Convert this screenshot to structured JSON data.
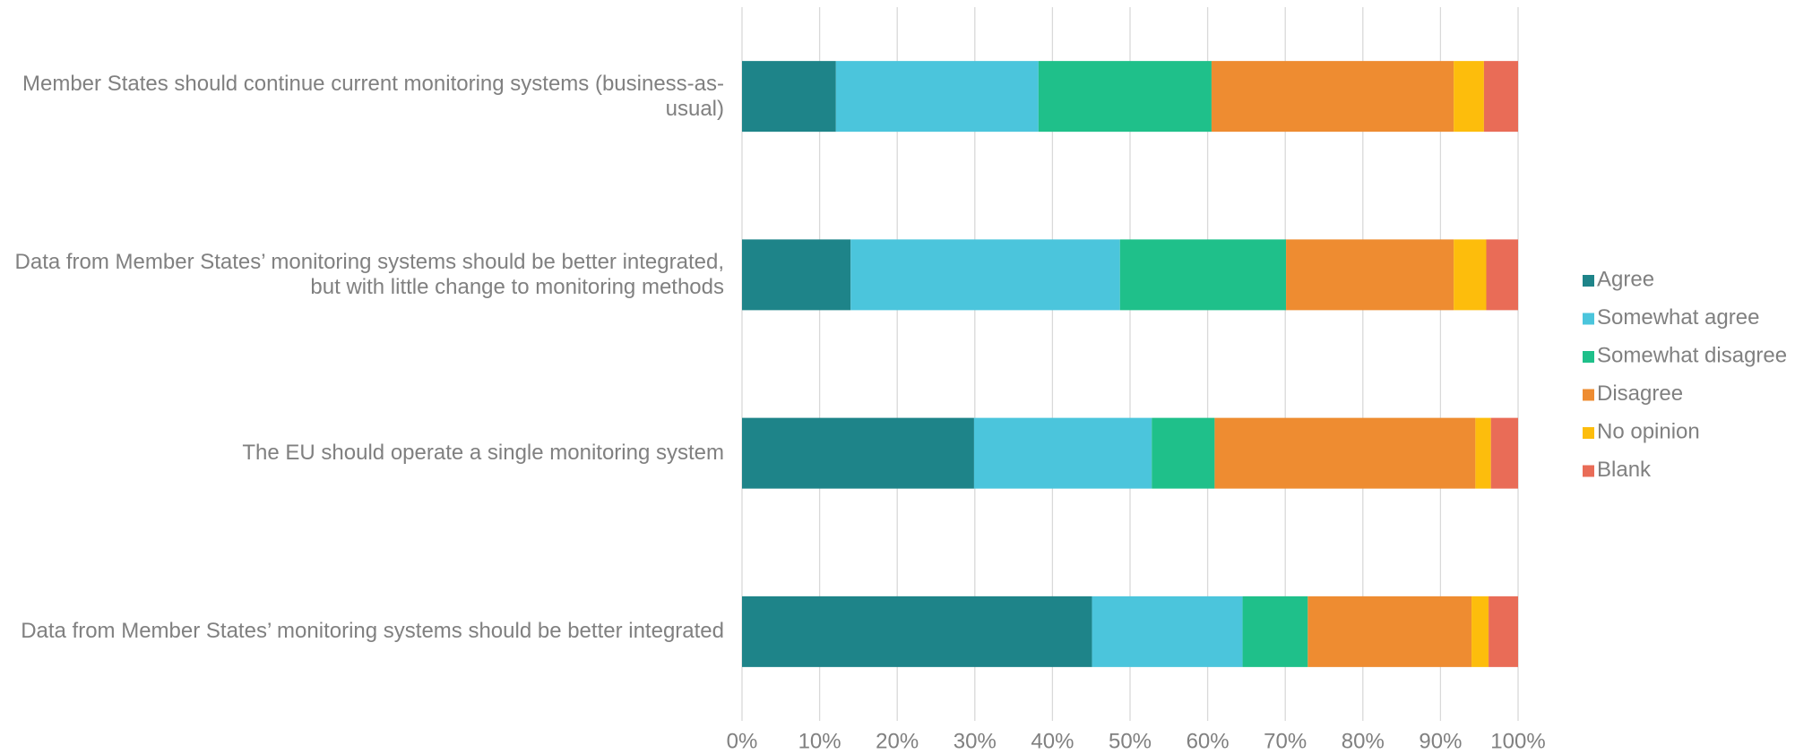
{
  "chart_data": {
    "type": "stacked-bar-horizontal",
    "categories": [
      "Member States should continue current monitoring systems (business-as-usual)",
      "Data from Member States’ monitoring systems should be better integrated, but with little change to monitoring methods",
      "The EU should operate a single monitoring system",
      "Data from Member States’ monitoring systems should be better integrated"
    ],
    "series": [
      {
        "name": "Agree",
        "color": "#1e8489",
        "values": [
          12.1,
          14.0,
          29.9,
          45.1
        ]
      },
      {
        "name": "Somewhat agree",
        "color": "#4bc5dc",
        "values": [
          26.1,
          34.7,
          22.9,
          19.4
        ]
      },
      {
        "name": "Somewhat disagree",
        "color": "#1fc08a",
        "values": [
          22.3,
          21.4,
          8.1,
          8.4
        ]
      },
      {
        "name": "Disagree",
        "color": "#ee8c31",
        "values": [
          31.2,
          21.6,
          33.6,
          21.1
        ]
      },
      {
        "name": "No opinion",
        "color": "#fdbd0c",
        "values": [
          3.9,
          4.2,
          2.0,
          2.2
        ]
      },
      {
        "name": "Blank",
        "color": "#e96c57",
        "values": [
          4.4,
          4.1,
          3.5,
          3.8
        ]
      }
    ],
    "xlim": [
      0,
      100
    ],
    "xticks": [
      {
        "value": 0,
        "label": "0%"
      },
      {
        "value": 10,
        "label": "10%"
      },
      {
        "value": 20,
        "label": "20%"
      },
      {
        "value": 30,
        "label": "30%"
      },
      {
        "value": 40,
        "label": "40%"
      },
      {
        "value": 50,
        "label": "50%"
      },
      {
        "value": 60,
        "label": "60%"
      },
      {
        "value": 70,
        "label": "70%"
      },
      {
        "value": 80,
        "label": "80%"
      },
      {
        "value": 90,
        "label": "90%"
      },
      {
        "value": 100,
        "label": "100%"
      }
    ],
    "grid": true,
    "legend": "right"
  }
}
